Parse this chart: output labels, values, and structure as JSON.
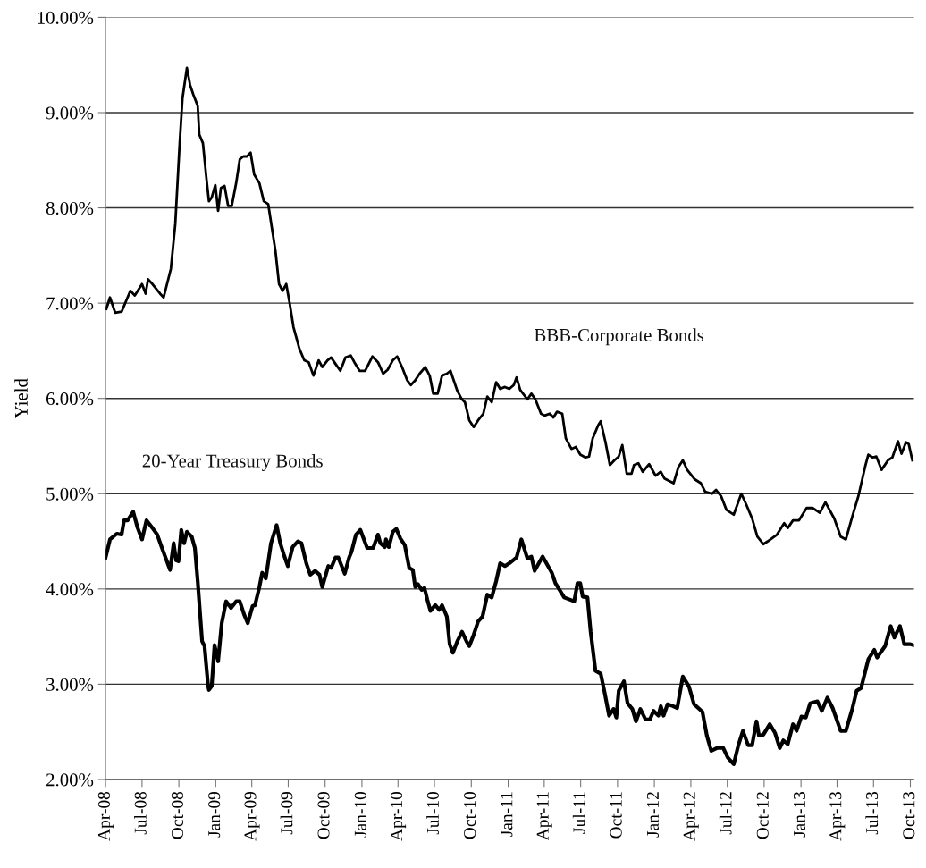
{
  "chart_data": {
    "type": "line",
    "ylabel": "Yield",
    "grid": "y",
    "legend": false,
    "marker": "none",
    "line_style": "solid",
    "xlim": [
      "2008-04-01",
      "2013-10-10"
    ],
    "ylim": [
      2,
      10
    ],
    "xticks": [
      {
        "value": "2008-04",
        "label": "Apr-08"
      },
      {
        "value": "2008-07",
        "label": "Jul-08"
      },
      {
        "value": "2008-10",
        "label": "Oct-08"
      },
      {
        "value": "2009-01",
        "label": "Jan-09"
      },
      {
        "value": "2009-04",
        "label": "Apr-09"
      },
      {
        "value": "2009-07",
        "label": "Jul-09"
      },
      {
        "value": "2009-10",
        "label": "Oct-09"
      },
      {
        "value": "2010-01",
        "label": "Jan-10"
      },
      {
        "value": "2010-04",
        "label": "Apr-10"
      },
      {
        "value": "2010-07",
        "label": "Jul-10"
      },
      {
        "value": "2010-10",
        "label": "Oct-10"
      },
      {
        "value": "2011-01",
        "label": "Jan-11"
      },
      {
        "value": "2011-04",
        "label": "Apr-11"
      },
      {
        "value": "2011-07",
        "label": "Jul-11"
      },
      {
        "value": "2011-10",
        "label": "Oct-11"
      },
      {
        "value": "2012-01",
        "label": "Jan-12"
      },
      {
        "value": "2012-04",
        "label": "Apr-12"
      },
      {
        "value": "2012-07",
        "label": "Jul-12"
      },
      {
        "value": "2012-10",
        "label": "Oct-12"
      },
      {
        "value": "2013-01",
        "label": "Jan-13"
      },
      {
        "value": "2013-04",
        "label": "Apr-13"
      },
      {
        "value": "2013-07",
        "label": "Jul-13"
      },
      {
        "value": "2013-10",
        "label": "Oct-13"
      }
    ],
    "yticks": [
      {
        "value": 2,
        "label": "2.00%"
      },
      {
        "value": 3,
        "label": "3.00%"
      },
      {
        "value": 4,
        "label": "4.00%"
      },
      {
        "value": 5,
        "label": "5.00%"
      },
      {
        "value": 6,
        "label": "6.00%"
      },
      {
        "value": 7,
        "label": "7.00%"
      },
      {
        "value": 8,
        "label": "8.00%"
      },
      {
        "value": 9,
        "label": "9.00%"
      },
      {
        "value": 10,
        "label": "10.00%"
      }
    ],
    "series": [
      {
        "name": "BBB-Corporate Bonds",
        "color": "#000000",
        "x": [
          "2008-04-03",
          "2008-04-12",
          "2008-04-25",
          "2008-05-11",
          "2008-05-21",
          "2008-06-02",
          "2008-06-13",
          "2008-07-01",
          "2008-07-10",
          "2008-07-16",
          "2008-07-27",
          "2008-08-15",
          "2008-08-24",
          "2008-09-11",
          "2008-09-22",
          "2008-10-03",
          "2008-10-10",
          "2008-10-21",
          "2008-10-29",
          "2008-11-06",
          "2008-11-17",
          "2008-11-21",
          "2008-11-30",
          "2008-12-09",
          "2008-12-15",
          "2008-12-22",
          "2008-12-31",
          "2009-01-07",
          "2009-01-14",
          "2009-01-23",
          "2009-02-01",
          "2009-02-10",
          "2009-02-21",
          "2009-03-02",
          "2009-03-11",
          "2009-03-20",
          "2009-03-29",
          "2009-04-07",
          "2009-04-20",
          "2009-05-01",
          "2009-05-12",
          "2009-05-23",
          "2009-05-30",
          "2009-06-08",
          "2009-06-17",
          "2009-06-26",
          "2009-07-05",
          "2009-07-14",
          "2009-07-29",
          "2009-08-10",
          "2009-08-21",
          "2009-09-02",
          "2009-09-15",
          "2009-09-24",
          "2009-10-07",
          "2009-10-16",
          "2009-10-29",
          "2009-11-08",
          "2009-11-21",
          "2009-12-04",
          "2009-12-13",
          "2009-12-26",
          "2010-01-09",
          "2010-01-27",
          "2010-02-10",
          "2010-02-23",
          "2010-03-06",
          "2010-03-19",
          "2010-03-30",
          "2010-04-11",
          "2010-04-24",
          "2010-05-03",
          "2010-05-14",
          "2010-05-25",
          "2010-06-08",
          "2010-06-19",
          "2010-06-28",
          "2010-07-09",
          "2010-07-20",
          "2010-08-01",
          "2010-08-10",
          "2010-08-27",
          "2010-09-06",
          "2010-09-15",
          "2010-09-26",
          "2010-10-07",
          "2010-10-18",
          "2010-10-31",
          "2010-11-10",
          "2010-11-21",
          "2010-12-02",
          "2010-12-12",
          "2010-12-24",
          "2011-01-04",
          "2011-01-15",
          "2011-01-22",
          "2011-01-31",
          "2011-02-18",
          "2011-02-28",
          "2011-03-10",
          "2011-03-24",
          "2011-04-02",
          "2011-04-15",
          "2011-04-24",
          "2011-05-03",
          "2011-05-16",
          "2011-05-25",
          "2011-06-08",
          "2011-06-19",
          "2011-06-30",
          "2011-07-13",
          "2011-07-22",
          "2011-07-31",
          "2011-08-14",
          "2011-08-20",
          "2011-09-01",
          "2011-09-12",
          "2011-09-23",
          "2011-10-04",
          "2011-10-13",
          "2011-10-24",
          "2011-11-05",
          "2011-11-11",
          "2011-11-22",
          "2011-12-03",
          "2011-12-19",
          "2012-01-04",
          "2012-01-17",
          "2012-01-26",
          "2012-02-18",
          "2012-03-01",
          "2012-03-12",
          "2012-03-23",
          "2012-04-11",
          "2012-04-26",
          "2012-05-07",
          "2012-05-24",
          "2012-06-03",
          "2012-06-16",
          "2012-06-29",
          "2012-07-17",
          "2012-08-05",
          "2012-08-18",
          "2012-09-01",
          "2012-09-14",
          "2012-09-29",
          "2012-10-10",
          "2012-11-02",
          "2012-11-20",
          "2012-11-29",
          "2012-12-12",
          "2012-12-27",
          "2013-01-15",
          "2013-01-30",
          "2013-02-17",
          "2013-03-03",
          "2013-03-25",
          "2013-04-10",
          "2013-04-23",
          "2013-05-09",
          "2013-05-24",
          "2013-06-11",
          "2013-06-18",
          "2013-06-29",
          "2013-07-08",
          "2013-07-21",
          "2013-08-06",
          "2013-08-17",
          "2013-08-31",
          "2013-09-09",
          "2013-09-20",
          "2013-09-27",
          "2013-10-06"
        ],
        "values": [
          6.94,
          7.06,
          6.9,
          6.91,
          7.01,
          7.13,
          7.08,
          7.2,
          7.1,
          7.25,
          7.2,
          7.1,
          7.06,
          7.36,
          7.83,
          8.68,
          9.15,
          9.47,
          9.29,
          9.19,
          9.07,
          8.77,
          8.68,
          8.3,
          8.07,
          8.11,
          8.24,
          7.97,
          8.21,
          8.23,
          8.02,
          8.02,
          8.26,
          8.51,
          8.54,
          8.54,
          8.58,
          8.35,
          8.26,
          8.07,
          8.04,
          7.74,
          7.55,
          7.2,
          7.13,
          7.2,
          6.99,
          6.75,
          6.52,
          6.4,
          6.38,
          6.24,
          6.4,
          6.33,
          6.4,
          6.43,
          6.35,
          6.29,
          6.43,
          6.45,
          6.38,
          6.29,
          6.29,
          6.44,
          6.38,
          6.26,
          6.3,
          6.4,
          6.44,
          6.33,
          6.19,
          6.14,
          6.19,
          6.26,
          6.33,
          6.24,
          6.05,
          6.05,
          6.24,
          6.26,
          6.29,
          6.08,
          6.0,
          5.96,
          5.77,
          5.7,
          5.77,
          5.84,
          6.02,
          5.96,
          6.17,
          6.1,
          6.12,
          6.1,
          6.14,
          6.22,
          6.09,
          5.99,
          6.05,
          5.99,
          5.84,
          5.82,
          5.84,
          5.8,
          5.86,
          5.84,
          5.58,
          5.47,
          5.49,
          5.41,
          5.38,
          5.39,
          5.58,
          5.72,
          5.76,
          5.54,
          5.3,
          5.35,
          5.39,
          5.51,
          5.21,
          5.21,
          5.3,
          5.32,
          5.23,
          5.31,
          5.19,
          5.23,
          5.16,
          5.11,
          5.28,
          5.35,
          5.25,
          5.15,
          5.11,
          5.02,
          5.0,
          5.04,
          4.97,
          4.83,
          4.78,
          5.0,
          4.88,
          4.74,
          4.55,
          4.47,
          4.5,
          4.57,
          4.69,
          4.64,
          4.72,
          4.72,
          4.85,
          4.85,
          4.8,
          4.91,
          4.74,
          4.55,
          4.52,
          4.76,
          4.97,
          5.3,
          5.41,
          5.38,
          5.39,
          5.25,
          5.35,
          5.38,
          5.55,
          5.42,
          5.54,
          5.52,
          5.35
        ]
      },
      {
        "name": "20-Year Treasury Bonds",
        "color": "#000000",
        "x": [
          "2008-04-01",
          "2008-04-12",
          "2008-04-29",
          "2008-05-11",
          "2008-05-17",
          "2008-05-26",
          "2008-06-09",
          "2008-06-20",
          "2008-07-01",
          "2008-07-12",
          "2008-07-27",
          "2008-08-08",
          "2008-08-19",
          "2008-09-09",
          "2008-09-18",
          "2008-09-24",
          "2008-09-30",
          "2008-10-07",
          "2008-10-14",
          "2008-10-21",
          "2008-11-02",
          "2008-11-10",
          "2008-11-17",
          "2008-11-28",
          "2008-12-04",
          "2008-12-13",
          "2008-12-15",
          "2008-12-22",
          "2008-12-29",
          "2009-01-07",
          "2009-01-16",
          "2009-01-27",
          "2009-02-08",
          "2009-02-21",
          "2009-03-02",
          "2009-03-13",
          "2009-03-22",
          "2009-04-03",
          "2009-04-09",
          "2009-04-20",
          "2009-04-27",
          "2009-05-06",
          "2009-05-19",
          "2009-06-02",
          "2009-06-11",
          "2009-06-20",
          "2009-06-30",
          "2009-07-12",
          "2009-07-25",
          "2009-08-03",
          "2009-08-15",
          "2009-08-25",
          "2009-09-06",
          "2009-09-17",
          "2009-09-24",
          "2009-10-09",
          "2009-10-16",
          "2009-10-27",
          "2009-11-03",
          "2009-11-19",
          "2009-11-30",
          "2009-12-06",
          "2009-12-17",
          "2009-12-28",
          "2010-01-14",
          "2010-01-29",
          "2010-02-10",
          "2010-02-16",
          "2010-02-27",
          "2010-03-02",
          "2010-03-09",
          "2010-03-19",
          "2010-03-28",
          "2010-04-07",
          "2010-04-18",
          "2010-04-29",
          "2010-05-08",
          "2010-05-14",
          "2010-05-21",
          "2010-05-30",
          "2010-06-06",
          "2010-06-13",
          "2010-06-21",
          "2010-07-03",
          "2010-07-13",
          "2010-07-20",
          "2010-08-01",
          "2010-08-08",
          "2010-08-16",
          "2010-08-27",
          "2010-09-08",
          "2010-09-19",
          "2010-09-26",
          "2010-10-07",
          "2010-10-18",
          "2010-10-29",
          "2010-11-10",
          "2010-11-21",
          "2010-12-02",
          "2010-12-12",
          "2010-12-24",
          "2011-01-04",
          "2011-01-22",
          "2011-02-03",
          "2011-02-18",
          "2011-02-28",
          "2011-03-08",
          "2011-03-28",
          "2011-04-20",
          "2011-04-29",
          "2011-05-21",
          "2011-06-15",
          "2011-06-23",
          "2011-06-30",
          "2011-07-06",
          "2011-07-18",
          "2011-07-26",
          "2011-08-07",
          "2011-08-20",
          "2011-08-29",
          "2011-09-10",
          "2011-09-21",
          "2011-09-28",
          "2011-10-04",
          "2011-10-17",
          "2011-10-26",
          "2011-11-07",
          "2011-11-16",
          "2011-11-27",
          "2011-12-10",
          "2011-12-21",
          "2011-12-30",
          "2012-01-11",
          "2012-01-17",
          "2012-01-24",
          "2012-02-03",
          "2012-02-16",
          "2012-02-27",
          "2012-03-12",
          "2012-03-27",
          "2012-04-09",
          "2012-04-30",
          "2012-05-11",
          "2012-05-22",
          "2012-06-05",
          "2012-06-21",
          "2012-07-02",
          "2012-07-17",
          "2012-07-28",
          "2012-08-09",
          "2012-08-22",
          "2012-09-01",
          "2012-09-12",
          "2012-09-18",
          "2012-09-29",
          "2012-10-15",
          "2012-10-28",
          "2012-11-09",
          "2012-11-18",
          "2012-11-29",
          "2012-12-12",
          "2012-12-21",
          "2013-01-02",
          "2013-01-13",
          "2013-01-24",
          "2013-02-11",
          "2013-02-22",
          "2013-03-08",
          "2013-03-21",
          "2013-04-10",
          "2013-04-23",
          "2013-05-09",
          "2013-05-20",
          "2013-05-31",
          "2013-06-18",
          "2013-07-03",
          "2013-07-10",
          "2013-07-30",
          "2013-08-13",
          "2013-08-22",
          "2013-09-05",
          "2013-09-16",
          "2013-10-01",
          "2013-10-08"
        ],
        "values": [
          4.33,
          4.52,
          4.58,
          4.57,
          4.72,
          4.72,
          4.81,
          4.64,
          4.52,
          4.72,
          4.64,
          4.57,
          4.44,
          4.2,
          4.48,
          4.3,
          4.29,
          4.62,
          4.48,
          4.6,
          4.55,
          4.43,
          4.08,
          3.45,
          3.4,
          2.98,
          2.94,
          2.98,
          3.41,
          3.24,
          3.64,
          3.87,
          3.8,
          3.87,
          3.87,
          3.73,
          3.64,
          3.82,
          3.83,
          4.02,
          4.17,
          4.11,
          4.48,
          4.67,
          4.48,
          4.36,
          4.24,
          4.44,
          4.5,
          4.48,
          4.27,
          4.15,
          4.19,
          4.15,
          4.02,
          4.24,
          4.22,
          4.33,
          4.33,
          4.16,
          4.33,
          4.39,
          4.57,
          4.62,
          4.43,
          4.43,
          4.57,
          4.48,
          4.44,
          4.52,
          4.44,
          4.6,
          4.63,
          4.53,
          4.46,
          4.22,
          4.2,
          4.02,
          4.05,
          3.99,
          4.01,
          3.89,
          3.77,
          3.83,
          3.78,
          3.83,
          3.71,
          3.42,
          3.33,
          3.45,
          3.55,
          3.45,
          3.4,
          3.52,
          3.66,
          3.71,
          3.94,
          3.91,
          4.08,
          4.27,
          4.24,
          4.27,
          4.33,
          4.52,
          4.32,
          4.34,
          4.19,
          4.34,
          4.17,
          4.06,
          3.91,
          3.87,
          4.06,
          4.06,
          3.92,
          3.91,
          3.55,
          3.14,
          3.11,
          2.93,
          2.67,
          2.74,
          2.65,
          2.93,
          3.03,
          2.8,
          2.74,
          2.61,
          2.74,
          2.63,
          2.63,
          2.72,
          2.67,
          2.77,
          2.67,
          2.79,
          2.77,
          2.75,
          3.08,
          2.98,
          2.79,
          2.71,
          2.46,
          2.3,
          2.33,
          2.33,
          2.23,
          2.16,
          2.35,
          2.51,
          2.36,
          2.36,
          2.61,
          2.46,
          2.47,
          2.58,
          2.49,
          2.33,
          2.41,
          2.37,
          2.58,
          2.51,
          2.66,
          2.65,
          2.8,
          2.82,
          2.72,
          2.86,
          2.75,
          2.51,
          2.51,
          2.74,
          2.93,
          2.96,
          3.26,
          3.36,
          3.28,
          3.4,
          3.61,
          3.49,
          3.61,
          3.42,
          3.42,
          3.41
        ]
      }
    ]
  }
}
